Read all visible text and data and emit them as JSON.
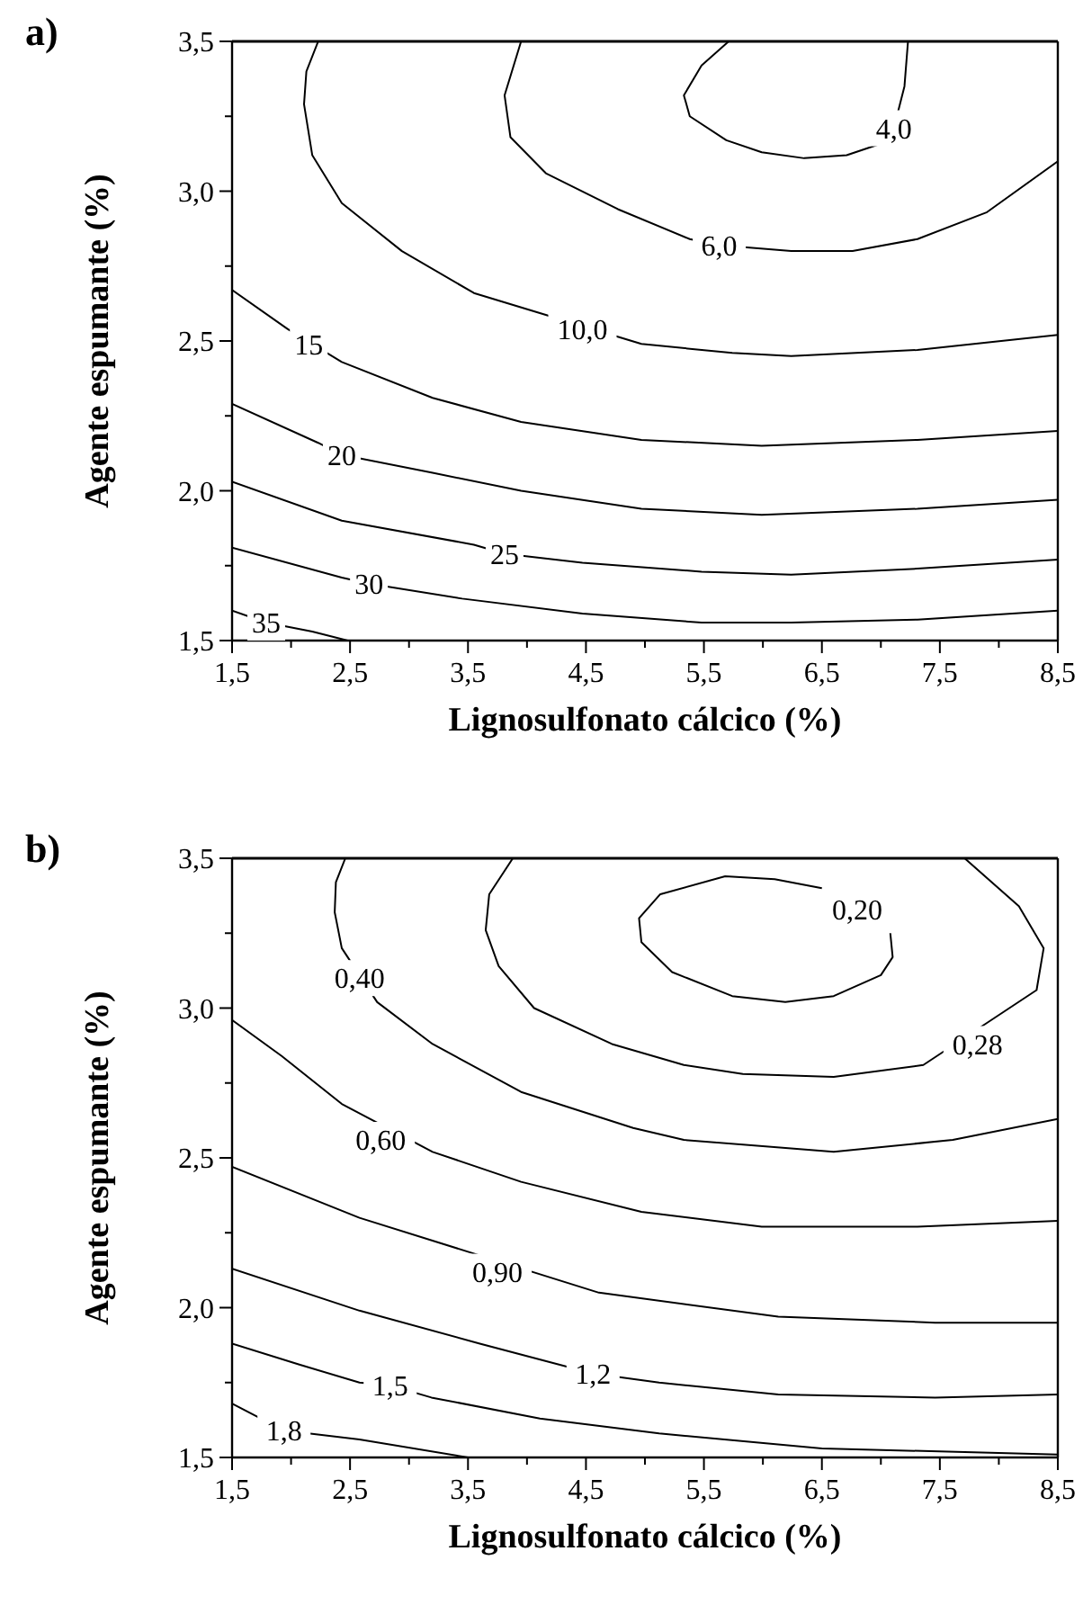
{
  "chart_data": [
    {
      "type": "line",
      "title": "a)",
      "xlabel": "Lignosulfonato cálcico (%)",
      "ylabel": "Agente espumante (%)",
      "xlim": [
        1.5,
        8.5
      ],
      "ylim": [
        1.5,
        3.5
      ],
      "xticks": [
        {
          "value": 1.5,
          "label": "1,5"
        },
        {
          "value": 2.0,
          "label": null
        },
        {
          "value": 2.5,
          "label": "2,5"
        },
        {
          "value": 3.0,
          "label": null
        },
        {
          "value": 3.5,
          "label": "3,5"
        },
        {
          "value": 4.0,
          "label": null
        },
        {
          "value": 4.5,
          "label": "4,5"
        },
        {
          "value": 5.0,
          "label": null
        },
        {
          "value": 5.5,
          "label": "5,5"
        },
        {
          "value": 6.0,
          "label": null
        },
        {
          "value": 6.5,
          "label": "6,5"
        },
        {
          "value": 7.0,
          "label": null
        },
        {
          "value": 7.5,
          "label": "7,5"
        },
        {
          "value": 8.0,
          "label": null
        },
        {
          "value": 8.5,
          "label": "8,5"
        }
      ],
      "yticks": [
        {
          "value": 1.5,
          "label": "1,5"
        },
        {
          "value": 1.75,
          "label": null
        },
        {
          "value": 2.0,
          "label": "2,0"
        },
        {
          "value": 2.25,
          "label": null
        },
        {
          "value": 2.5,
          "label": "2,5"
        },
        {
          "value": 2.75,
          "label": null
        },
        {
          "value": 3.0,
          "label": "3,0"
        },
        {
          "value": 3.25,
          "label": null
        },
        {
          "value": 3.5,
          "label": "3,5"
        }
      ],
      "series": [
        {
          "color": "#000000",
          "x": [
            5.71,
            5.48,
            5.33,
            5.38,
            5.69,
            5.99,
            6.35,
            6.71,
            7.01,
            7.11,
            7.2,
            7.23
          ],
          "values": [
            3.5,
            3.42,
            3.32,
            3.25,
            3.17,
            3.13,
            3.11,
            3.12,
            3.16,
            3.21,
            3.35,
            3.5
          ]
        },
        {
          "color": "#000000",
          "x": [
            3.95,
            3.81,
            3.86,
            4.16,
            4.77,
            5.38,
            5.63,
            6.24,
            6.76,
            7.31,
            7.9,
            8.5
          ],
          "values": [
            3.5,
            3.32,
            3.18,
            3.06,
            2.94,
            2.84,
            2.82,
            2.8,
            2.8,
            2.84,
            2.93,
            3.1
          ]
        },
        {
          "color": "#000000",
          "x": [
            2.23,
            2.13,
            2.11,
            2.18,
            2.43,
            2.94,
            3.55,
            4.97,
            5.74,
            6.24,
            7.31,
            8.5
          ],
          "values": [
            3.5,
            3.4,
            3.29,
            3.12,
            2.96,
            2.8,
            2.66,
            2.49,
            2.46,
            2.45,
            2.47,
            2.52
          ]
        },
        {
          "color": "#000000",
          "x": [
            1.5,
            1.97,
            2.43,
            3.2,
            3.95,
            4.97,
            5.99,
            7.31,
            8.5
          ],
          "values": [
            2.67,
            2.54,
            2.43,
            2.31,
            2.23,
            2.17,
            2.15,
            2.17,
            2.2
          ]
        },
        {
          "color": "#000000",
          "x": [
            1.5,
            2.23,
            2.43,
            3.2,
            3.95,
            4.97,
            5.99,
            7.31,
            8.5
          ],
          "values": [
            2.29,
            2.16,
            2.12,
            2.06,
            2.0,
            1.94,
            1.92,
            1.94,
            1.97
          ]
        },
        {
          "color": "#000000",
          "x": [
            1.5,
            2.43,
            3.55,
            3.81,
            4.47,
            5.48,
            6.24,
            7.31,
            8.5
          ],
          "values": [
            2.03,
            1.9,
            1.82,
            1.79,
            1.76,
            1.73,
            1.72,
            1.74,
            1.77
          ]
        },
        {
          "color": "#000000",
          "x": [
            1.5,
            2.43,
            2.66,
            3.45,
            4.47,
            5.48,
            6.24,
            7.31,
            8.5
          ],
          "values": [
            1.81,
            1.71,
            1.69,
            1.64,
            1.59,
            1.56,
            1.56,
            1.57,
            1.6
          ]
        },
        {
          "color": "#000000",
          "x": [
            1.5,
            1.79,
            2.18,
            2.48
          ],
          "values": [
            1.6,
            1.56,
            1.53,
            1.5
          ]
        }
      ],
      "annotations": [
        {
          "text": "4,0",
          "x": 7.11,
          "y": 3.21
        },
        {
          "text": "6,0",
          "x": 5.63,
          "y": 2.82
        },
        {
          "text": "10,0",
          "x": 4.47,
          "y": 2.54
        },
        {
          "text": "15",
          "x": 2.15,
          "y": 2.49
        },
        {
          "text": "20",
          "x": 2.43,
          "y": 2.12
        },
        {
          "text": "25",
          "x": 3.81,
          "y": 1.79
        },
        {
          "text": "30",
          "x": 2.66,
          "y": 1.69
        },
        {
          "text": "35",
          "x": 1.79,
          "y": 1.56
        }
      ]
    },
    {
      "type": "line",
      "title": "b)",
      "xlabel": "Lignosulfonato cálcico (%)",
      "ylabel": "Agente espumante (%)",
      "xlim": [
        1.5,
        8.5
      ],
      "ylim": [
        1.5,
        3.5
      ],
      "xticks": [
        {
          "value": 1.5,
          "label": "1,5"
        },
        {
          "value": 2.0,
          "label": null
        },
        {
          "value": 2.5,
          "label": "2,5"
        },
        {
          "value": 3.0,
          "label": null
        },
        {
          "value": 3.5,
          "label": "3,5"
        },
        {
          "value": 4.0,
          "label": null
        },
        {
          "value": 4.5,
          "label": "4,5"
        },
        {
          "value": 5.0,
          "label": null
        },
        {
          "value": 5.5,
          "label": "5,5"
        },
        {
          "value": 6.0,
          "label": null
        },
        {
          "value": 6.5,
          "label": "6,5"
        },
        {
          "value": 7.0,
          "label": null
        },
        {
          "value": 7.5,
          "label": "7,5"
        },
        {
          "value": 8.0,
          "label": null
        },
        {
          "value": 8.5,
          "label": "8,5"
        }
      ],
      "yticks": [
        {
          "value": 1.5,
          "label": "1,5"
        },
        {
          "value": 1.75,
          "label": null
        },
        {
          "value": 2.0,
          "label": "2,0"
        },
        {
          "value": 2.25,
          "label": null
        },
        {
          "value": 2.5,
          "label": "2,5"
        },
        {
          "value": 2.75,
          "label": null
        },
        {
          "value": 3.0,
          "label": "3,0"
        },
        {
          "value": 3.25,
          "label": null
        },
        {
          "value": 3.5,
          "label": "3,5"
        }
      ],
      "series": [
        {
          "color": "#000000",
          "x": [
            7.08,
            7.1,
            7.0,
            6.6,
            6.19,
            5.74,
            5.23,
            4.97,
            4.95,
            5.13,
            5.68,
            6.1,
            6.5
          ],
          "values": [
            3.25,
            3.17,
            3.11,
            3.04,
            3.02,
            3.04,
            3.12,
            3.22,
            3.3,
            3.38,
            3.44,
            3.43,
            3.4
          ]
        },
        {
          "color": "#000000",
          "x": [
            3.88,
            3.68,
            3.65,
            3.76,
            4.06,
            4.72,
            5.33,
            5.83,
            6.6,
            7.36,
            8.32,
            8.38,
            8.17,
            7.71
          ],
          "values": [
            3.5,
            3.38,
            3.26,
            3.14,
            3.0,
            2.88,
            2.81,
            2.78,
            2.77,
            2.81,
            3.06,
            3.2,
            3.34,
            3.5
          ]
        },
        {
          "color": "#000000",
          "x": [
            2.46,
            2.38,
            2.37,
            2.43,
            2.73,
            3.2,
            3.95,
            4.9,
            5.33,
            6.6,
            7.61,
            8.5
          ],
          "values": [
            3.5,
            3.42,
            3.32,
            3.2,
            3.02,
            2.88,
            2.72,
            2.6,
            2.56,
            2.52,
            2.56,
            2.63
          ]
        },
        {
          "color": "#000000",
          "x": [
            1.5,
            1.92,
            2.43,
            3.2,
            3.95,
            4.97,
            5.99,
            6.5,
            7.31,
            8.5
          ],
          "values": [
            2.96,
            2.84,
            2.68,
            2.52,
            2.42,
            2.32,
            2.27,
            2.27,
            2.27,
            2.29
          ]
        },
        {
          "color": "#000000",
          "x": [
            1.5,
            2.58,
            4.61,
            6.13,
            7.46,
            8.5
          ],
          "values": [
            2.47,
            2.3,
            2.05,
            1.97,
            1.95,
            1.95
          ]
        },
        {
          "color": "#000000",
          "x": [
            1.5,
            2.58,
            3.6,
            4.56,
            5.12,
            6.13,
            7.46,
            8.5
          ],
          "values": [
            2.13,
            1.99,
            1.88,
            1.78,
            1.75,
            1.71,
            1.7,
            1.71
          ]
        },
        {
          "color": "#000000",
          "x": [
            1.5,
            2.07,
            2.58,
            2.84,
            3.19,
            4.11,
            5.12,
            6.5,
            8.5
          ],
          "values": [
            1.88,
            1.81,
            1.75,
            1.74,
            1.7,
            1.63,
            1.58,
            1.53,
            1.51
          ]
        },
        {
          "color": "#000000",
          "x": [
            1.5,
            1.94,
            2.58,
            3.5
          ],
          "values": [
            1.68,
            1.59,
            1.56,
            1.5
          ]
        }
      ],
      "annotations": [
        {
          "text": "0,20",
          "x": 6.8,
          "y": 3.33
        },
        {
          "text": "0,28",
          "x": 7.82,
          "y": 2.88
        },
        {
          "text": "0,40",
          "x": 2.58,
          "y": 3.1
        },
        {
          "text": "0,60",
          "x": 2.76,
          "y": 2.56
        },
        {
          "text": "0,90",
          "x": 3.75,
          "y": 2.12
        },
        {
          "text": "1,2",
          "x": 4.56,
          "y": 1.78
        },
        {
          "text": "1,5",
          "x": 2.84,
          "y": 1.74
        },
        {
          "text": "1,8",
          "x": 1.94,
          "y": 1.59
        }
      ]
    }
  ]
}
